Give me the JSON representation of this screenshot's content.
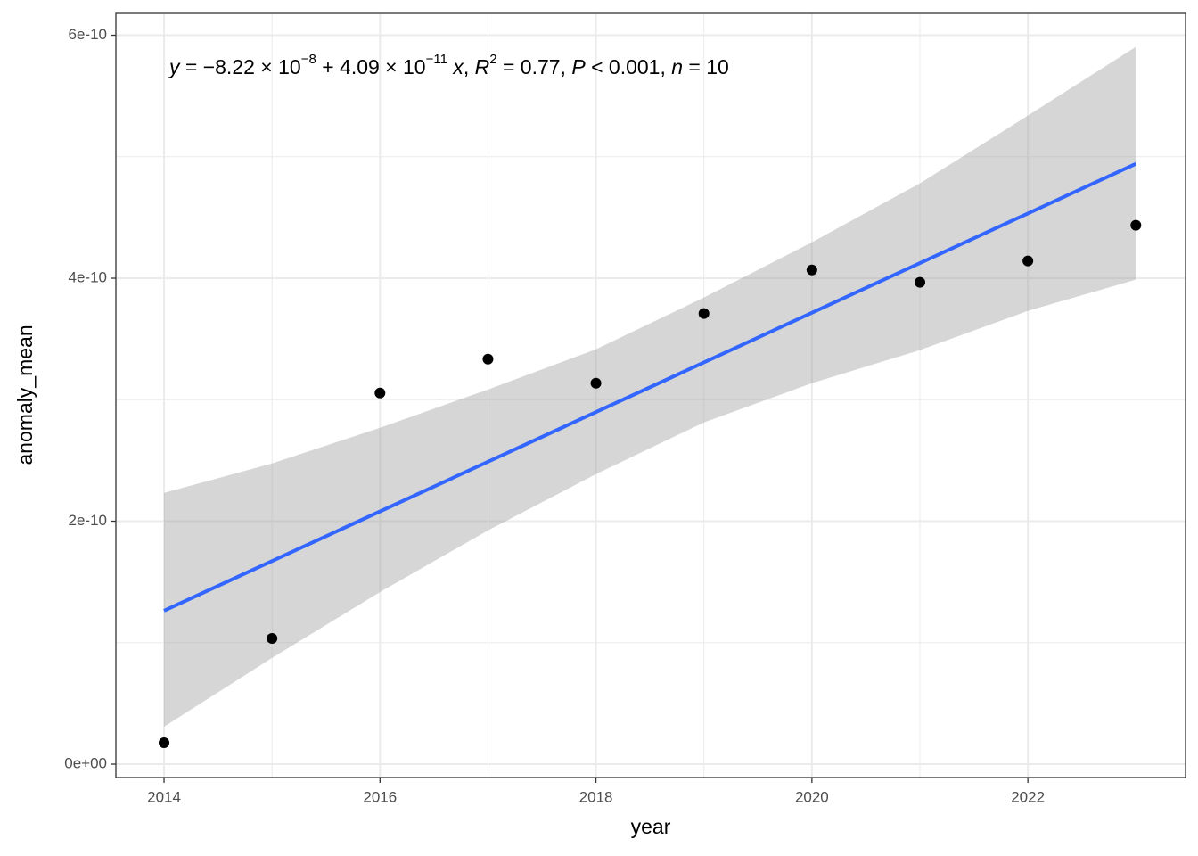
{
  "chart_data": {
    "type": "scatter",
    "x_label": "year",
    "y_label": "anomaly_mean",
    "annotation": [
      "y",
      " = −8.22 × 10",
      "−8",
      " + 4.09 × 10",
      "−11",
      " x",
      ", ",
      "R",
      "2",
      " = 0.77, ",
      "P",
      " < 0.001, ",
      "n",
      " = 10"
    ],
    "x": [
      2014,
      2015,
      2016,
      2017,
      2018,
      2019,
      2020,
      2021,
      2022,
      2023
    ],
    "values": [
      1.76e-11,
      1.035e-10,
      3.055e-10,
      3.334e-10,
      3.136e-10,
      3.709e-10,
      4.068e-10,
      3.966e-10,
      4.142e-10,
      4.436e-10
    ],
    "color": "#000000",
    "fit": {
      "x": [
        2014,
        2023
      ],
      "values": [
        1.263e-10,
        4.942e-10
      ],
      "color": "#3366ff"
    },
    "band": {
      "x": [
        2014,
        2015,
        2016,
        2017,
        2018,
        2019,
        2020,
        2021,
        2022,
        2023
      ],
      "upper": [
        2.233e-10,
        2.475e-10,
        2.769e-10,
        3.084e-10,
        3.415e-10,
        3.841e-10,
        4.296e-10,
        4.781e-10,
        5.339e-10,
        5.904e-10
      ],
      "lower": [
        3.08e-11,
        8.74e-11,
        1.417e-10,
        1.924e-10,
        2.387e-10,
        2.813e-10,
        3.136e-10,
        3.408e-10,
        3.731e-10,
        3.988e-10
      ],
      "color": "#999999"
    },
    "xlim": [
      2013.554,
      2023.46
    ],
    "ylim": [
      -1.1e-11,
      6.18e-10
    ],
    "xticks": [
      2014,
      2016,
      2018,
      2020,
      2022
    ],
    "yticks": [
      {
        "value": 0,
        "label": "0e+00"
      },
      2e-10,
      4e-10,
      6e-10
    ],
    "grid": true
  }
}
